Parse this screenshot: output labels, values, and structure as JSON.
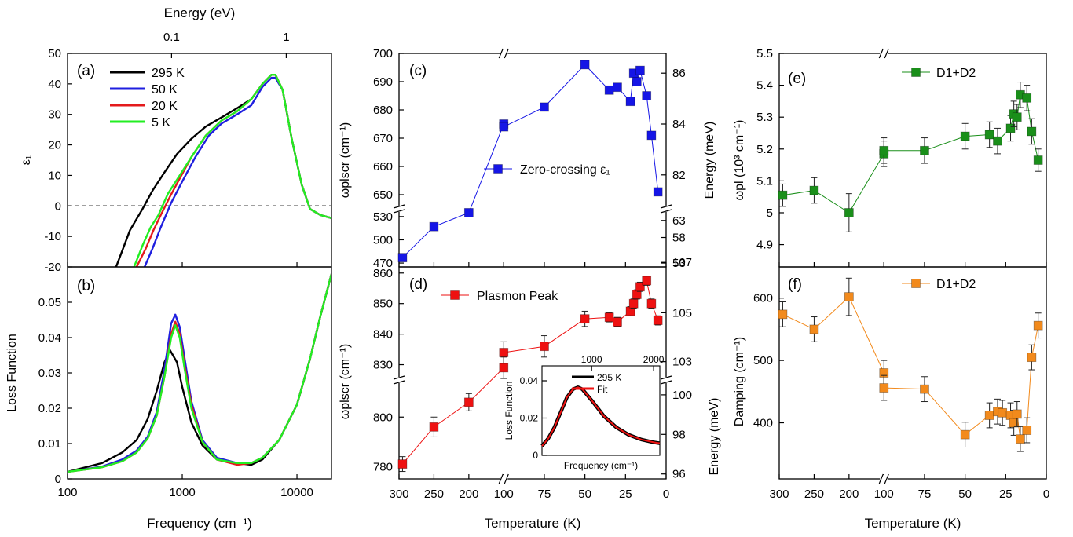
{
  "figure": {
    "top_axis_label": "Energy (eV)",
    "top_ticks": [
      "0.1",
      "1"
    ],
    "left_xlabel": "Frequency (cm⁻¹)",
    "temp_xlabel": "Temperature (K)"
  },
  "panels": {
    "a": {
      "label": "(a)",
      "ylabel": "ε₁"
    },
    "b": {
      "label": "(b)",
      "ylabel": "Loss Function"
    },
    "c": {
      "label": "(c)",
      "ylabel": "ωplscr (cm⁻¹)",
      "ylabel_right": "Energy (meV)"
    },
    "d": {
      "label": "(d)",
      "ylabel": "ωplscr (cm⁻¹)",
      "ylabel_right": "Energy (meV)"
    },
    "e": {
      "label": "(e)",
      "ylabel": "ωpl (10³ cm⁻¹)"
    },
    "f": {
      "label": "(f)",
      "ylabel": "Damping (cm⁻¹)"
    },
    "inset": {
      "ylabel": "Loss Function",
      "xlabel": "Frequency (cm⁻¹)"
    }
  },
  "chart_data": [
    {
      "id": "a",
      "type": "line",
      "ylabel": "ε₁",
      "xscale": "log",
      "xlim": [
        100,
        20000
      ],
      "ylim": [
        -20,
        50
      ],
      "yticks": [
        50,
        40,
        30,
        20,
        10,
        0,
        -10,
        -20
      ],
      "reference_line": {
        "y": 0,
        "style": "dashed"
      },
      "legend": "top-left",
      "series": [
        {
          "name": "295 K",
          "color": "#000000",
          "x": [
            265,
            350,
            450,
            550,
            700,
            900,
            1200,
            1600,
            2200,
            3000,
            4000,
            5000,
            6000,
            6500,
            7500,
            9000,
            11000,
            13000,
            16000,
            20000
          ],
          "y": [
            -20,
            -8,
            -1,
            5,
            11,
            17,
            22,
            26,
            29,
            32,
            35,
            40,
            43,
            43,
            38,
            22,
            7,
            -1,
            -3,
            -4
          ]
        },
        {
          "name": "50 K",
          "color": "#1f1fdf",
          "x": [
            470,
            550,
            650,
            800,
            1000,
            1300,
            1700,
            2200,
            3000,
            4000,
            5000,
            6000,
            6500,
            7500,
            9000,
            11000,
            13000,
            16000,
            20000
          ],
          "y": [
            -20,
            -14,
            -7,
            1,
            8,
            16,
            23,
            27,
            30,
            33,
            39,
            42,
            42,
            38,
            22,
            7,
            -1,
            -3,
            -4
          ]
        },
        {
          "name": "20 K",
          "color": "#e41a1c",
          "x": [
            400,
            480,
            560,
            650,
            780,
            950,
            1200,
            1600,
            2200,
            3000,
            4000,
            5000,
            6000,
            6500,
            7500,
            9000,
            11000,
            13000,
            16000,
            20000
          ],
          "y": [
            -20,
            -14,
            -8,
            -3,
            3,
            9,
            16,
            23,
            28,
            31,
            35,
            40,
            43,
            43,
            38,
            22,
            7,
            -1,
            -3,
            -4
          ]
        },
        {
          "name": "5 K",
          "color": "#22ee22",
          "x": [
            380,
            450,
            530,
            620,
            750,
            950,
            1200,
            1600,
            2200,
            3000,
            4000,
            5000,
            6000,
            6500,
            7500,
            9000,
            11000,
            13000,
            16000,
            20000
          ],
          "y": [
            -20,
            -13,
            -7,
            -3,
            4,
            10,
            16,
            23,
            28,
            31,
            35,
            40,
            43,
            43,
            38,
            22,
            7,
            -1,
            -3,
            -4
          ]
        }
      ]
    },
    {
      "id": "b",
      "type": "line",
      "ylabel": "Loss Function",
      "xscale": "log",
      "xlim": [
        100,
        20000
      ],
      "ylim": [
        0,
        0.06
      ],
      "xtick_labels": [
        "100",
        "1000",
        "10000"
      ],
      "yticks": [
        0,
        0.01,
        0.02,
        0.03,
        0.04,
        0.05
      ],
      "series": [
        {
          "name": "295 K",
          "color": "#000000",
          "x": [
            100,
            200,
            300,
            400,
            500,
            600,
            700,
            780,
            900,
            1000,
            1200,
            1500,
            2000,
            3000,
            4000,
            5000,
            7000,
            10000,
            13000,
            16000,
            20000
          ],
          "y": [
            0.002,
            0.0045,
            0.0075,
            0.011,
            0.017,
            0.025,
            0.033,
            0.0365,
            0.033,
            0.026,
            0.016,
            0.0095,
            0.0055,
            0.0045,
            0.004,
            0.0055,
            0.011,
            0.021,
            0.034,
            0.046,
            0.058
          ]
        },
        {
          "name": "50 K",
          "color": "#1f1fdf",
          "x": [
            100,
            200,
            300,
            400,
            500,
            600,
            700,
            800,
            870,
            950,
            1050,
            1200,
            1500,
            2000,
            3000,
            4000,
            5000,
            7000,
            10000,
            13000,
            16000,
            20000
          ],
          "y": [
            0.002,
            0.0035,
            0.0055,
            0.008,
            0.012,
            0.019,
            0.031,
            0.044,
            0.0465,
            0.043,
            0.034,
            0.022,
            0.011,
            0.006,
            0.0045,
            0.0045,
            0.006,
            0.011,
            0.021,
            0.034,
            0.046,
            0.058
          ]
        },
        {
          "name": "20 K",
          "color": "#e41a1c",
          "x": [
            100,
            200,
            300,
            400,
            500,
            600,
            700,
            800,
            870,
            950,
            1050,
            1200,
            1500,
            2000,
            3000,
            4000,
            5000,
            7000,
            10000,
            13000,
            16000,
            20000
          ],
          "y": [
            0.002,
            0.0033,
            0.005,
            0.0075,
            0.0115,
            0.018,
            0.029,
            0.041,
            0.0445,
            0.041,
            0.032,
            0.021,
            0.0105,
            0.0055,
            0.004,
            0.0045,
            0.006,
            0.011,
            0.021,
            0.034,
            0.046,
            0.058
          ]
        },
        {
          "name": "5 K",
          "color": "#22ee22",
          "x": [
            100,
            200,
            300,
            400,
            500,
            600,
            700,
            800,
            870,
            950,
            1050,
            1200,
            1500,
            2000,
            3000,
            4000,
            5000,
            7000,
            10000,
            13000,
            16000,
            20000
          ],
          "y": [
            0.002,
            0.0033,
            0.005,
            0.0075,
            0.0115,
            0.018,
            0.029,
            0.04,
            0.0435,
            0.04,
            0.031,
            0.02,
            0.0105,
            0.0055,
            0.0045,
            0.0045,
            0.006,
            0.011,
            0.021,
            0.034,
            0.046,
            0.058
          ]
        }
      ]
    },
    {
      "id": "c",
      "type": "scatter",
      "ylabel": "ωplscr (cm⁻¹)",
      "ylabel_right": "Energy (meV)",
      "xlim_reversed": [
        300,
        0
      ],
      "x_axis_break": [
        150,
        100
      ],
      "ylim_upper": [
        645,
        700
      ],
      "ylim_lower": [
        465,
        540
      ],
      "y_axis_break": [
        540,
        645
      ],
      "yticks_upper": [
        650,
        660,
        670,
        680,
        690,
        700
      ],
      "yticks_lower": [
        470,
        500,
        530
      ],
      "right_ticks_upper": [
        "82",
        "84",
        "86"
      ],
      "right_ticks_lower": [
        "53",
        "58",
        "63"
      ],
      "legend": "right",
      "series": [
        {
          "name": "Zero-crossing ε₁",
          "color": "#1515e6",
          "x": [
            295,
            250,
            200,
            150,
            100,
            75,
            50,
            35,
            30,
            22,
            20,
            18,
            16,
            12,
            9,
            5
          ],
          "y": [
            477,
            517,
            535,
            675,
            674,
            681,
            696,
            687,
            688,
            683,
            693,
            690,
            694,
            685,
            671,
            651
          ],
          "yerr": [
            1,
            1,
            1,
            1,
            1,
            1,
            1,
            1,
            1,
            1,
            1,
            1,
            1,
            1,
            1,
            1
          ]
        }
      ]
    },
    {
      "id": "d",
      "type": "scatter",
      "ylabel": "ωplscr (cm⁻¹)",
      "ylabel_right": "Energy (meV)",
      "xlim_reversed": [
        300,
        0
      ],
      "x_axis_break": [
        150,
        100
      ],
      "ylim_upper": [
        825,
        862
      ],
      "ylim_lower": [
        775,
        815
      ],
      "yticks_upper": [
        830,
        840,
        850,
        860
      ],
      "yticks_lower": [
        780,
        800
      ],
      "right_ticks_upper": [
        "103",
        "105",
        "107"
      ],
      "right_ticks_lower": [
        "96",
        "98",
        "100"
      ],
      "legend": "top-left",
      "series": [
        {
          "name": "Plasmon Peak",
          "color": "#ee1111",
          "x": [
            295,
            250,
            200,
            150,
            100,
            75,
            50,
            35,
            30,
            22,
            20,
            18,
            16,
            12,
            9,
            5
          ],
          "y": [
            781,
            796,
            806,
            829,
            834,
            836,
            845,
            845.5,
            844,
            847.5,
            850,
            853,
            855.5,
            857.5,
            850,
            844.5
          ],
          "yerr": [
            3,
            4,
            3.5,
            3.5,
            3.5,
            3.5,
            2.5,
            1.5,
            1.5,
            1.5,
            1.5,
            1.5,
            1.5,
            1.5,
            1.5,
            1.5
          ]
        }
      ]
    },
    {
      "id": "d-inset",
      "type": "line",
      "ylabel": "Loss Function",
      "xlabel": "Frequency (cm⁻¹)",
      "xlim": [
        200,
        2100
      ],
      "ylim": [
        0,
        0.048
      ],
      "xtick_labels": [
        "1000",
        "2000"
      ],
      "yticks": [
        0,
        0.02,
        0.04
      ],
      "legend": "top-right",
      "series": [
        {
          "name": "295 K",
          "color": "#000000",
          "x": [
            200,
            300,
            400,
            500,
            600,
            700,
            780,
            850,
            1000,
            1200,
            1400,
            1600,
            1800,
            2000,
            2100
          ],
          "y": [
            0.005,
            0.009,
            0.015,
            0.023,
            0.031,
            0.0355,
            0.0365,
            0.0355,
            0.0295,
            0.021,
            0.015,
            0.011,
            0.0085,
            0.007,
            0.0065
          ]
        },
        {
          "name": "Fit",
          "color": "#ee1111",
          "x": [
            200,
            300,
            400,
            500,
            600,
            700,
            780,
            850,
            1000,
            1200,
            1400,
            1600,
            1800,
            2000,
            2100
          ],
          "y": [
            0.005,
            0.009,
            0.015,
            0.023,
            0.031,
            0.0355,
            0.0365,
            0.0355,
            0.0295,
            0.021,
            0.015,
            0.011,
            0.0085,
            0.007,
            0.0065
          ]
        }
      ]
    },
    {
      "id": "e",
      "type": "scatter",
      "ylabel": "ωpl (10³ cm⁻¹)",
      "xlim_reversed": [
        300,
        0
      ],
      "x_axis_break": [
        150,
        100
      ],
      "ylim": [
        4.83,
        5.5
      ],
      "yticks": [
        "5",
        "5.1",
        "5.2",
        "5.3",
        "5.4",
        "5.5",
        "4.9"
      ],
      "legend": "top-right",
      "series": [
        {
          "name": "D1+D2",
          "color": "#1a8f1a",
          "x": [
            295,
            250,
            200,
            150,
            100,
            75,
            50,
            35,
            30,
            22,
            20,
            18,
            16,
            12,
            9,
            5
          ],
          "y": [
            5.055,
            5.07,
            5.0,
            5.185,
            5.195,
            5.195,
            5.24,
            5.245,
            5.225,
            5.265,
            5.31,
            5.3,
            5.37,
            5.36,
            5.255,
            5.165
          ],
          "yerr": [
            0.035,
            0.04,
            0.06,
            0.04,
            0.04,
            0.04,
            0.04,
            0.04,
            0.04,
            0.04,
            0.04,
            0.04,
            0.04,
            0.04,
            0.04,
            0.035
          ]
        }
      ]
    },
    {
      "id": "f",
      "type": "scatter",
      "ylabel": "Damping (cm⁻¹)",
      "xlim_reversed": [
        300,
        0
      ],
      "x_axis_break": [
        150,
        100
      ],
      "ylim": [
        310,
        650
      ],
      "yticks": [
        400,
        500,
        600
      ],
      "legend": "top-right",
      "series": [
        {
          "name": "D1+D2",
          "color": "#f28a1c",
          "x": [
            295,
            250,
            200,
            150,
            100,
            75,
            50,
            35,
            30,
            27,
            22,
            20,
            18,
            16,
            12,
            9,
            5
          ],
          "y": [
            574,
            550,
            602,
            480,
            456,
            454,
            381,
            412,
            418,
            416,
            412,
            400,
            414,
            374,
            388,
            505,
            556
          ],
          "yerr": [
            20,
            20,
            30,
            20,
            20,
            20,
            20,
            20,
            20,
            20,
            20,
            20,
            20,
            20,
            20,
            20,
            20
          ]
        }
      ]
    }
  ]
}
